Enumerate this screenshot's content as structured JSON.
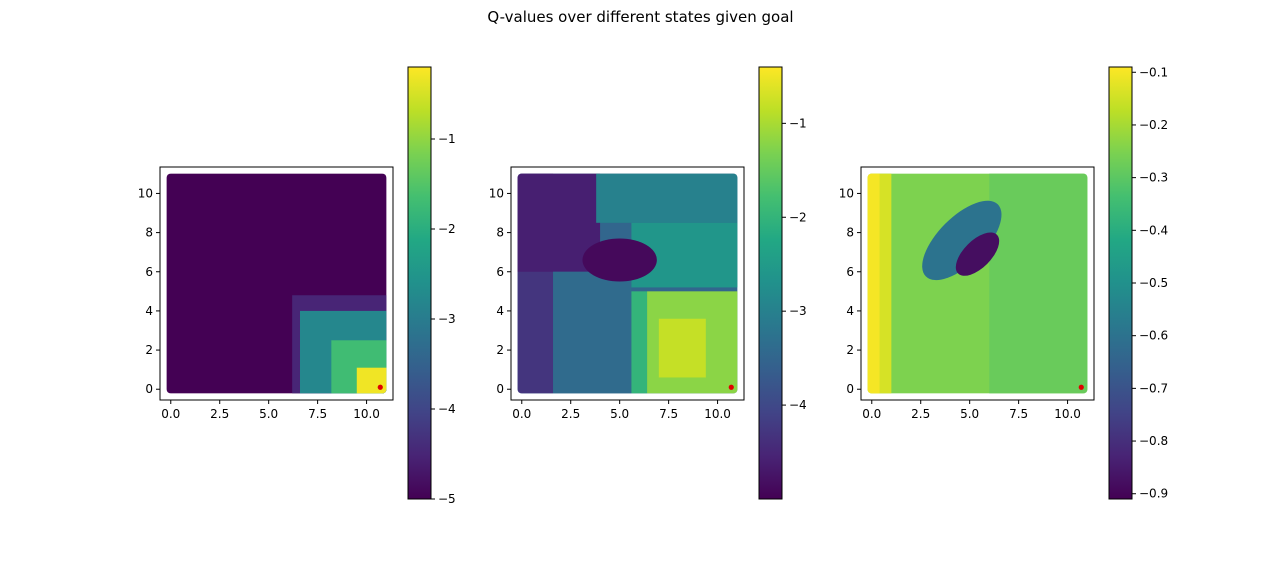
{
  "figure": {
    "title": "Q-values over different states given goal"
  },
  "chart_data": [
    {
      "type": "heatmap",
      "title": "",
      "xlabel": "",
      "ylabel": "",
      "x_range": [
        0,
        10.8
      ],
      "y_range": [
        0,
        10.8
      ],
      "xlim": [
        -0.55,
        11.35
      ],
      "ylim": [
        -0.55,
        11.35
      ],
      "x_ticks": [
        0.0,
        2.5,
        5.0,
        7.5,
        10.0
      ],
      "x_tick_labels": [
        "0.0",
        "2.5",
        "5.0",
        "7.5",
        "10.0"
      ],
      "y_ticks": [
        0,
        2,
        4,
        6,
        8,
        10
      ],
      "y_tick_labels": [
        "0",
        "2",
        "4",
        "6",
        "8",
        "10"
      ],
      "colormap": "viridis",
      "colorbar": {
        "vmin": -5.0,
        "vmax": -0.2,
        "ticks": [
          -1,
          -2,
          -3,
          -4,
          -5
        ],
        "tick_labels": [
          "−1",
          "−2",
          "−3",
          "−4",
          "−5"
        ]
      },
      "regions": [
        {
          "x": [
            0,
            10.8
          ],
          "y": [
            0,
            10.8
          ],
          "value": -5.0
        },
        {
          "x": [
            6.2,
            10.8
          ],
          "y": [
            0,
            4.8
          ],
          "value": -4.5
        },
        {
          "x": [
            6.6,
            10.8
          ],
          "y": [
            0,
            4.0
          ],
          "value": -2.8
        },
        {
          "x": [
            8.2,
            10.8
          ],
          "y": [
            0,
            2.5
          ],
          "value": -1.7
        },
        {
          "x": [
            9.5,
            10.8
          ],
          "y": [
            0,
            1.1
          ],
          "value": -0.3
        }
      ],
      "goal": {
        "x": 10.7,
        "y": 0.1,
        "color": "#e00000"
      }
    },
    {
      "type": "heatmap",
      "title": "",
      "xlabel": "",
      "ylabel": "",
      "x_range": [
        0,
        10.8
      ],
      "y_range": [
        0,
        10.8
      ],
      "xlim": [
        -0.55,
        11.35
      ],
      "ylim": [
        -0.55,
        11.35
      ],
      "x_ticks": [
        0.0,
        2.5,
        5.0,
        7.5,
        10.0
      ],
      "x_tick_labels": [
        "0.0",
        "2.5",
        "5.0",
        "7.5",
        "10.0"
      ],
      "y_ticks": [
        0,
        2,
        4,
        6,
        8,
        10
      ],
      "y_tick_labels": [
        "0",
        "2",
        "4",
        "6",
        "8",
        "10"
      ],
      "colormap": "viridis",
      "colorbar": {
        "vmin": -5.0,
        "vmax": -0.4,
        "ticks": [
          -1,
          -2,
          -3,
          -4
        ],
        "tick_labels": [
          "−1",
          "−2",
          "−3",
          "−4"
        ]
      },
      "regions": [
        {
          "x": [
            0,
            10.8
          ],
          "y": [
            0,
            10.8
          ],
          "value": -3.5
        },
        {
          "x": [
            0,
            1.6
          ],
          "y": [
            0,
            10.8
          ],
          "value": -4.3
        },
        {
          "x": [
            0,
            4.0
          ],
          "y": [
            6.0,
            10.8
          ],
          "value": -4.6
        },
        {
          "x": [
            1.6,
            5.6
          ],
          "y": [
            0,
            6.0
          ],
          "value": -3.4
        },
        {
          "x": [
            3.8,
            10.8
          ],
          "y": [
            8.5,
            10.8
          ],
          "value": -3.0
        },
        {
          "x": [
            5.6,
            10.8
          ],
          "y": [
            5.2,
            8.5
          ],
          "value": -2.6
        },
        {
          "x": [
            5.6,
            6.4
          ],
          "y": [
            0,
            5.0
          ],
          "value": -2.0
        },
        {
          "x": [
            6.4,
            10.8
          ],
          "y": [
            0,
            5.0
          ],
          "value": -1.2
        },
        {
          "x": [
            7.0,
            9.4
          ],
          "y": [
            0.6,
            3.6
          ],
          "value": -0.8
        }
      ],
      "blobs": [
        {
          "cx": 5.0,
          "cy": 6.6,
          "rx": 1.9,
          "ry": 1.1,
          "value": -4.9
        }
      ],
      "goal": {
        "x": 10.7,
        "y": 0.1,
        "color": "#e00000"
      }
    },
    {
      "type": "heatmap",
      "title": "",
      "xlabel": "",
      "ylabel": "",
      "x_range": [
        0,
        10.8
      ],
      "y_range": [
        0,
        10.8
      ],
      "xlim": [
        -0.55,
        11.35
      ],
      "ylim": [
        -0.55,
        11.35
      ],
      "x_ticks": [
        0.0,
        2.5,
        5.0,
        7.5,
        10.0
      ],
      "x_tick_labels": [
        "0.0",
        "2.5",
        "5.0",
        "7.5",
        "10.0"
      ],
      "y_ticks": [
        0,
        2,
        4,
        6,
        8,
        10
      ],
      "y_tick_labels": [
        "0",
        "2",
        "4",
        "6",
        "8",
        "10"
      ],
      "colormap": "viridis",
      "colorbar": {
        "vmin": -0.91,
        "vmax": -0.09,
        "ticks": [
          -0.1,
          -0.2,
          -0.3,
          -0.4,
          -0.5,
          -0.6,
          -0.7,
          -0.8,
          -0.9
        ],
        "tick_labels": [
          "−0.1",
          "−0.2",
          "−0.3",
          "−0.4",
          "−0.5",
          "−0.6",
          "−0.7",
          "−0.8",
          "−0.9"
        ]
      },
      "regions": [
        {
          "x": [
            0,
            10.8
          ],
          "y": [
            0,
            10.8
          ],
          "value": -0.25
        },
        {
          "x": [
            6.0,
            10.8
          ],
          "y": [
            0,
            10.8
          ],
          "value": -0.28
        },
        {
          "x": [
            0,
            1.0
          ],
          "y": [
            0,
            10.8
          ],
          "value": -0.14
        },
        {
          "x": [
            0,
            0.4
          ],
          "y": [
            0,
            10.8
          ],
          "value": -0.1
        }
      ],
      "blobs": [
        {
          "cx": 4.6,
          "cy": 7.6,
          "rx": 2.6,
          "ry": 1.2,
          "angle": -45,
          "value": -0.6
        },
        {
          "cx": 5.4,
          "cy": 6.9,
          "rx": 1.4,
          "ry": 0.7,
          "angle": -45,
          "value": -0.88
        }
      ],
      "goal": {
        "x": 10.7,
        "y": 0.1,
        "color": "#e00000"
      }
    }
  ]
}
